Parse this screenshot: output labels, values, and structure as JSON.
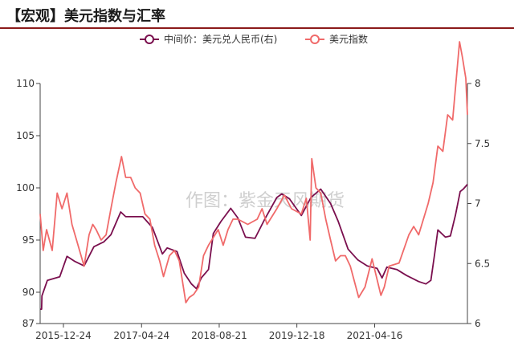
{
  "title": "【宏观】美元指数与汇率",
  "watermark": "作图：紫金天风期货",
  "colors": {
    "usd_cny": "#7a0f4e",
    "dxy": "#f06a6a",
    "title_rule": "#8b1a1a",
    "axis": "#444444"
  },
  "chart_data": {
    "type": "line",
    "title": "",
    "legend_position": "top-center",
    "grid": false,
    "x_ticks": [
      "2015-12-24",
      "2017-04-24",
      "2018-08-21",
      "2019-12-18",
      "2021-04-16"
    ],
    "x_range": [
      "2015-08-01",
      "2022-11-15"
    ],
    "y_left": {
      "range": [
        87,
        110
      ],
      "ticks": [
        87,
        90,
        95,
        100,
        105,
        110
      ]
    },
    "y_right": {
      "range": [
        6,
        8
      ],
      "ticks": [
        6,
        6.5,
        7,
        7.5,
        8
      ]
    },
    "series": [
      {
        "name": "中间价：美元兑人民币(右)",
        "axis": "right",
        "marker": "circle",
        "points": [
          [
            "2015-08-01",
            6.12
          ],
          [
            "2015-08-10",
            6.12
          ],
          [
            "2015-08-12",
            6.23
          ],
          [
            "2015-09-15",
            6.36
          ],
          [
            "2015-12-01",
            6.39
          ],
          [
            "2016-01-15",
            6.56
          ],
          [
            "2016-03-01",
            6.52
          ],
          [
            "2016-05-01",
            6.48
          ],
          [
            "2016-07-01",
            6.64
          ],
          [
            "2016-09-01",
            6.68
          ],
          [
            "2016-10-15",
            6.74
          ],
          [
            "2016-12-15",
            6.93
          ],
          [
            "2017-01-15",
            6.89
          ],
          [
            "2017-03-01",
            6.89
          ],
          [
            "2017-05-01",
            6.89
          ],
          [
            "2017-07-01",
            6.8
          ],
          [
            "2017-09-01",
            6.58
          ],
          [
            "2017-10-01",
            6.63
          ],
          [
            "2017-12-01",
            6.6
          ],
          [
            "2018-01-15",
            6.42
          ],
          [
            "2018-03-01",
            6.33
          ],
          [
            "2018-04-01",
            6.29
          ],
          [
            "2018-05-01",
            6.38
          ],
          [
            "2018-06-15",
            6.45
          ],
          [
            "2018-07-15",
            6.75
          ],
          [
            "2018-09-01",
            6.85
          ],
          [
            "2018-11-01",
            6.96
          ],
          [
            "2018-12-15",
            6.88
          ],
          [
            "2019-02-01",
            6.72
          ],
          [
            "2019-04-01",
            6.71
          ],
          [
            "2019-06-01",
            6.87
          ],
          [
            "2019-08-15",
            7.05
          ],
          [
            "2019-09-15",
            7.08
          ],
          [
            "2019-11-01",
            7.04
          ],
          [
            "2020-01-15",
            6.9
          ],
          [
            "2020-03-15",
            7.05
          ],
          [
            "2020-05-15",
            7.12
          ],
          [
            "2020-07-15",
            7.0
          ],
          [
            "2020-09-01",
            6.85
          ],
          [
            "2020-11-01",
            6.62
          ],
          [
            "2021-01-01",
            6.53
          ],
          [
            "2021-03-01",
            6.48
          ],
          [
            "2021-05-01",
            6.46
          ],
          [
            "2021-06-01",
            6.38
          ],
          [
            "2021-07-01",
            6.47
          ],
          [
            "2021-09-01",
            6.45
          ],
          [
            "2021-11-01",
            6.4
          ],
          [
            "2022-01-15",
            6.35
          ],
          [
            "2022-03-01",
            6.33
          ],
          [
            "2022-04-01",
            6.36
          ],
          [
            "2022-04-25",
            6.58
          ],
          [
            "2022-05-15",
            6.78
          ],
          [
            "2022-07-01",
            6.72
          ],
          [
            "2022-08-01",
            6.73
          ],
          [
            "2022-09-01",
            6.9
          ],
          [
            "2022-10-01",
            7.1
          ],
          [
            "2022-10-20",
            7.12
          ],
          [
            "2022-11-15",
            7.16
          ]
        ]
      },
      {
        "name": "美元指数",
        "axis": "left",
        "marker": "circle",
        "points": [
          [
            "2015-08-01",
            97.5
          ],
          [
            "2015-08-20",
            94.0
          ],
          [
            "2015-09-10",
            96.0
          ],
          [
            "2015-10-15",
            94.0
          ],
          [
            "2015-11-15",
            99.5
          ],
          [
            "2015-12-15",
            98.0
          ],
          [
            "2016-01-15",
            99.5
          ],
          [
            "2016-02-15",
            96.5
          ],
          [
            "2016-03-15",
            95.0
          ],
          [
            "2016-05-01",
            92.5
          ],
          [
            "2016-06-01",
            95.5
          ],
          [
            "2016-06-24",
            96.5
          ],
          [
            "2016-07-15",
            96.0
          ],
          [
            "2016-08-15",
            95.0
          ],
          [
            "2016-09-15",
            95.5
          ],
          [
            "2016-10-15",
            98.0
          ],
          [
            "2016-11-15",
            100.5
          ],
          [
            "2016-12-20",
            103.0
          ],
          [
            "2017-01-15",
            101.0
          ],
          [
            "2017-02-15",
            101.0
          ],
          [
            "2017-03-15",
            100.0
          ],
          [
            "2017-04-15",
            99.5
          ],
          [
            "2017-05-15",
            97.5
          ],
          [
            "2017-06-15",
            97.0
          ],
          [
            "2017-07-15",
            94.5
          ],
          [
            "2017-08-15",
            93.0
          ],
          [
            "2017-09-08",
            91.5
          ],
          [
            "2017-10-15",
            93.5
          ],
          [
            "2017-11-15",
            94.0
          ],
          [
            "2017-12-15",
            93.0
          ],
          [
            "2018-01-25",
            89.0
          ],
          [
            "2018-02-15",
            89.5
          ],
          [
            "2018-03-15",
            89.8
          ],
          [
            "2018-04-15",
            90.5
          ],
          [
            "2018-05-15",
            93.5
          ],
          [
            "2018-06-15",
            94.5
          ],
          [
            "2018-08-15",
            96.0
          ],
          [
            "2018-09-15",
            94.5
          ],
          [
            "2018-10-15",
            96.0
          ],
          [
            "2018-11-15",
            97.0
          ],
          [
            "2018-12-15",
            97.0
          ],
          [
            "2019-02-15",
            96.5
          ],
          [
            "2019-04-15",
            97.0
          ],
          [
            "2019-05-15",
            98.0
          ],
          [
            "2019-06-15",
            96.5
          ],
          [
            "2019-08-15",
            98.0
          ],
          [
            "2019-10-01",
            99.3
          ],
          [
            "2019-11-15",
            98.0
          ],
          [
            "2020-01-15",
            97.5
          ],
          [
            "2020-02-15",
            99.0
          ],
          [
            "2020-03-10",
            95.0
          ],
          [
            "2020-03-20",
            102.8
          ],
          [
            "2020-04-15",
            100.0
          ],
          [
            "2020-05-15",
            99.5
          ],
          [
            "2020-06-15",
            97.0
          ],
          [
            "2020-07-15",
            95.0
          ],
          [
            "2020-08-15",
            93.0
          ],
          [
            "2020-09-15",
            93.5
          ],
          [
            "2020-10-15",
            93.5
          ],
          [
            "2020-11-15",
            92.5
          ],
          [
            "2021-01-06",
            89.5
          ],
          [
            "2021-02-15",
            90.5
          ],
          [
            "2021-03-31",
            93.2
          ],
          [
            "2021-05-25",
            89.7
          ],
          [
            "2021-06-15",
            90.5
          ],
          [
            "2021-07-15",
            92.5
          ],
          [
            "2021-09-15",
            92.8
          ],
          [
            "2021-11-15",
            95.5
          ],
          [
            "2021-12-15",
            96.3
          ],
          [
            "2022-01-15",
            95.5
          ],
          [
            "2022-03-15",
            98.5
          ],
          [
            "2022-04-15",
            100.5
          ],
          [
            "2022-05-15",
            104.0
          ],
          [
            "2022-06-15",
            103.5
          ],
          [
            "2022-07-15",
            107.0
          ],
          [
            "2022-08-15",
            106.5
          ],
          [
            "2022-09-27",
            114.0
          ],
          [
            "2022-10-15",
            112.5
          ],
          [
            "2022-11-05",
            110.5
          ],
          [
            "2022-11-15",
            107.0
          ]
        ]
      }
    ]
  }
}
